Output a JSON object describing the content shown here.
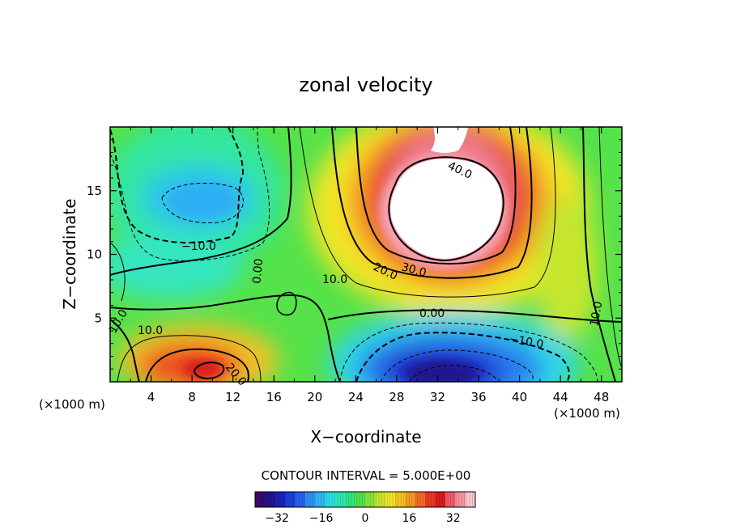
{
  "chart_data": {
    "type": "heatmap",
    "subtype": "filled-contour",
    "title": "zonal velocity",
    "xlabel": "X−coordinate",
    "ylabel": "Z−coordinate",
    "x_units_left": "(×1000 m)",
    "x_units_right": "(×1000 m)",
    "xlim": [
      0,
      50
    ],
    "ylim": [
      0,
      20
    ],
    "x_ticks": [
      4,
      8,
      12,
      16,
      20,
      24,
      28,
      32,
      36,
      40,
      44,
      48
    ],
    "y_ticks": [
      5,
      10,
      15
    ],
    "contour_interval_text": "CONTOUR INTERVAL = 5.000E+00",
    "contour_interval": 5.0,
    "contour_labels": [
      "−10.0",
      "0.00",
      "10.0",
      "10.0",
      "20.0",
      "30.0",
      "40.0",
      "10.0",
      "0.00",
      "−10.0",
      "10.0",
      "20.0"
    ],
    "colorbar": {
      "range": [
        -40,
        40
      ],
      "ticks": [
        -32,
        -16,
        0,
        16,
        32
      ],
      "tick_labels": [
        "−32",
        "−16",
        "0",
        "16",
        "32"
      ],
      "colors": [
        "#3a0a6e",
        "#22138c",
        "#1a22b5",
        "#1e3dd9",
        "#2a62ec",
        "#2f8ff2",
        "#2fb8f3",
        "#2ddde6",
        "#2fe6b8",
        "#33e680",
        "#4ee24a",
        "#8ae23a",
        "#c6e62e",
        "#f0e628",
        "#f8c326",
        "#f79a26",
        "#f26a25",
        "#e83a20",
        "#d81c1c",
        "#ee5a66",
        "#f793a0",
        "#fbc7ce"
      ]
    },
    "features": [
      {
        "name": "upper-positive-jet",
        "x": 32,
        "z": 13,
        "value": 45,
        "sign": "positive"
      },
      {
        "name": "upper-left-negative",
        "x": 9.5,
        "z": 14,
        "value": -15,
        "sign": "negative"
      },
      {
        "name": "lower-negative-jet",
        "x": 32,
        "z": 1,
        "value": -35,
        "sign": "negative"
      },
      {
        "name": "lower-left-positive",
        "x": 9,
        "z": 1,
        "value": 30,
        "sign": "positive"
      }
    ]
  }
}
